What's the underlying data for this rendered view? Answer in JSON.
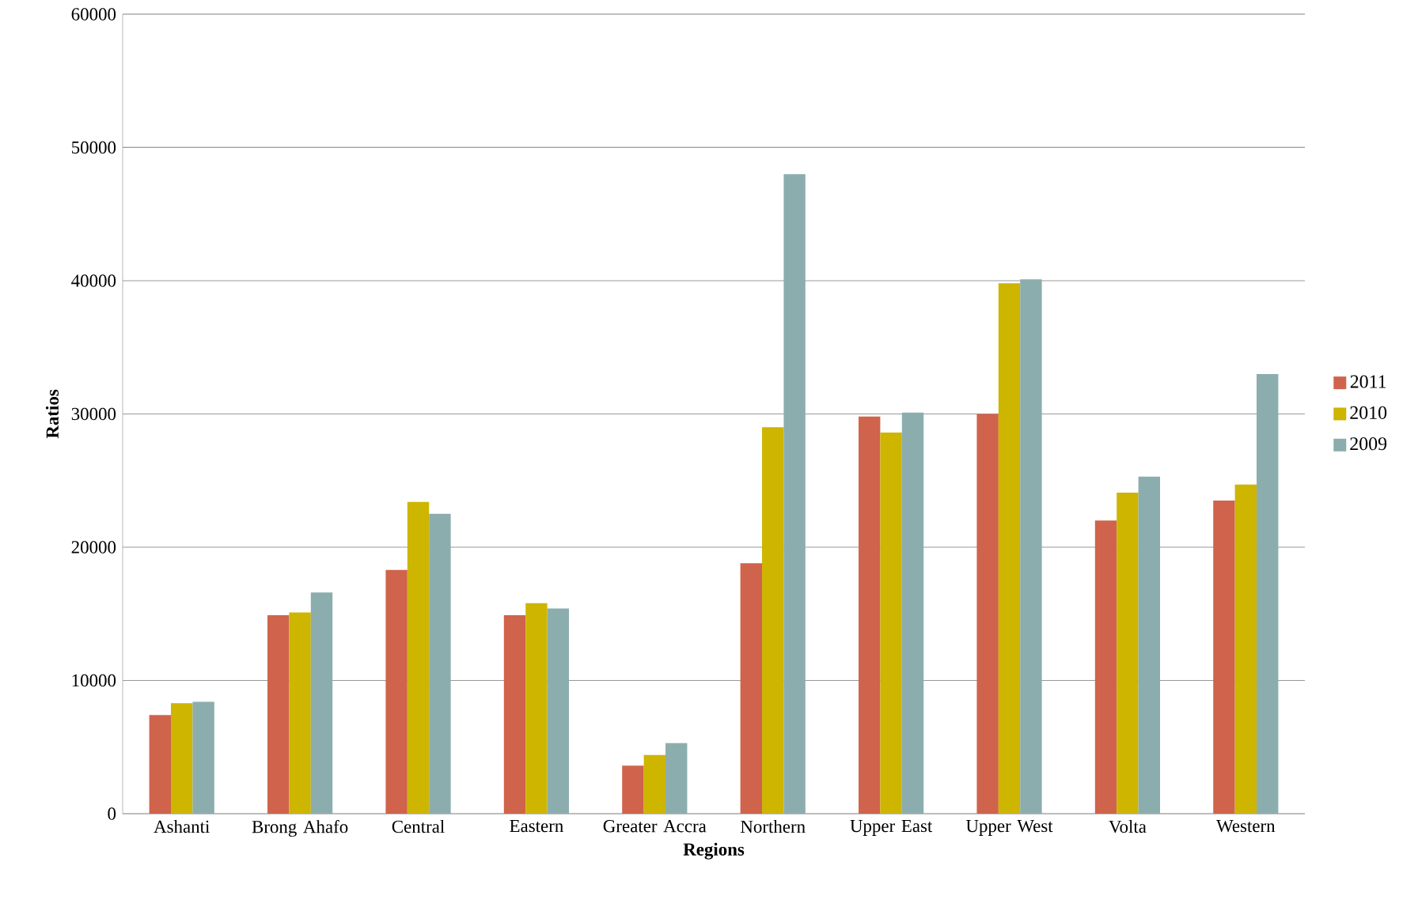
{
  "chart_data": {
    "type": "bar",
    "xlabel": "Regions",
    "ylabel": "Ratios",
    "categories": [
      "Ashanti",
      "Brong Ahafo",
      "Central",
      "Eastern",
      "Greater Accra",
      "Northern",
      "Upper East",
      "Upper West",
      "Volta",
      "Western"
    ],
    "series": [
      {
        "name": "2011",
        "color": "#d0634b",
        "values": [
          7400,
          14900,
          18300,
          14900,
          3600,
          18800,
          29800,
          30000,
          22000,
          23500
        ]
      },
      {
        "name": "2010",
        "color": "#cdb500",
        "values": [
          8300,
          15100,
          23400,
          15800,
          4400,
          29000,
          28600,
          39800,
          24100,
          24700
        ]
      },
      {
        "name": "2009",
        "color": "#8cadad",
        "values": [
          8400,
          16600,
          22500,
          15400,
          5300,
          48000,
          30100,
          40100,
          25300,
          33000
        ]
      }
    ],
    "ylim": [
      0,
      60000
    ],
    "yticks": [
      0,
      10000,
      20000,
      30000,
      40000,
      50000,
      60000
    ],
    "grid": "y",
    "legend": "right"
  }
}
